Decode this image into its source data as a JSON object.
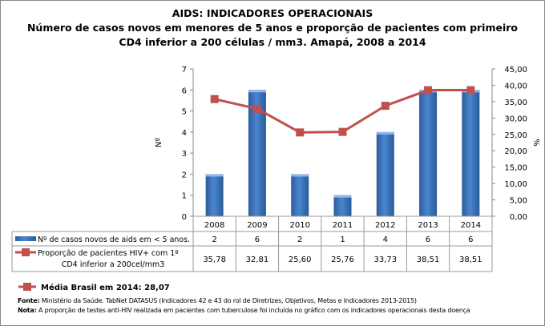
{
  "title_lines": [
    "AIDS: INDICADORES OPERACIONAIS",
    "Número de casos novos em menores de 5 anos e proporção de pacientes com primeiro",
    "CD4 inferior a 200 células / mm3. Amapá, 2008 a 2014"
  ],
  "chart_data": {
    "type": "bar+line",
    "categories": [
      "2008",
      "2009",
      "2010",
      "2011",
      "2012",
      "2013",
      "2014"
    ],
    "series": [
      {
        "name": "Nº de casos novos de aids em < 5 anos.",
        "type": "bar",
        "axis": "left",
        "values": [
          2,
          6,
          2,
          1,
          4,
          6,
          6
        ],
        "labels": [
          "2",
          "6",
          "2",
          "1",
          "4",
          "6",
          "6"
        ],
        "color": "#3A75C4"
      },
      {
        "name": "Proporção de pacientes HIV+ com 1º CD4 inferior a 200cel/mm3",
        "name_lines": [
          "Proporção de pacientes HIV+ com 1º",
          "CD4 inferior a 200cel/mm3"
        ],
        "type": "line",
        "axis": "right",
        "values": [
          35.78,
          32.81,
          25.6,
          25.76,
          33.73,
          38.51,
          38.51
        ],
        "labels": [
          "35,78",
          "32,81",
          "25,60",
          "25,76",
          "33,73",
          "38,51",
          "38,51"
        ],
        "color": "#C0504D"
      }
    ],
    "ylabel_left": "Nº",
    "ylabel_right": "%",
    "ylim_left": [
      0,
      7
    ],
    "ylim_right": [
      0,
      45
    ],
    "yticks_left": [
      "0",
      "1",
      "2",
      "3",
      "4",
      "5",
      "6",
      "7"
    ],
    "yticks_right": [
      "0,00",
      "5,00",
      "10,00",
      "15,00",
      "20,00",
      "25,00",
      "30,00",
      "35,00",
      "40,00",
      "45,00"
    ],
    "grid": false,
    "legend": "data-table"
  },
  "media_brasil": "Média Brasil em 2014: 28,07",
  "fonte_label": "Fonte:",
  "fonte_text": " Ministério da Saúde. TabNet DATASUS (Indicadores 42 e 43 do rol de Diretrizes, Objetivos, Metas e Indicadores 2013-2015)",
  "nota_label": "Nota:",
  "nota_text": " A proporção de testes anti-HIV realizada em pacientes com tuberculose foi incluída no gráfico com os indicadores operacionais desta doença"
}
